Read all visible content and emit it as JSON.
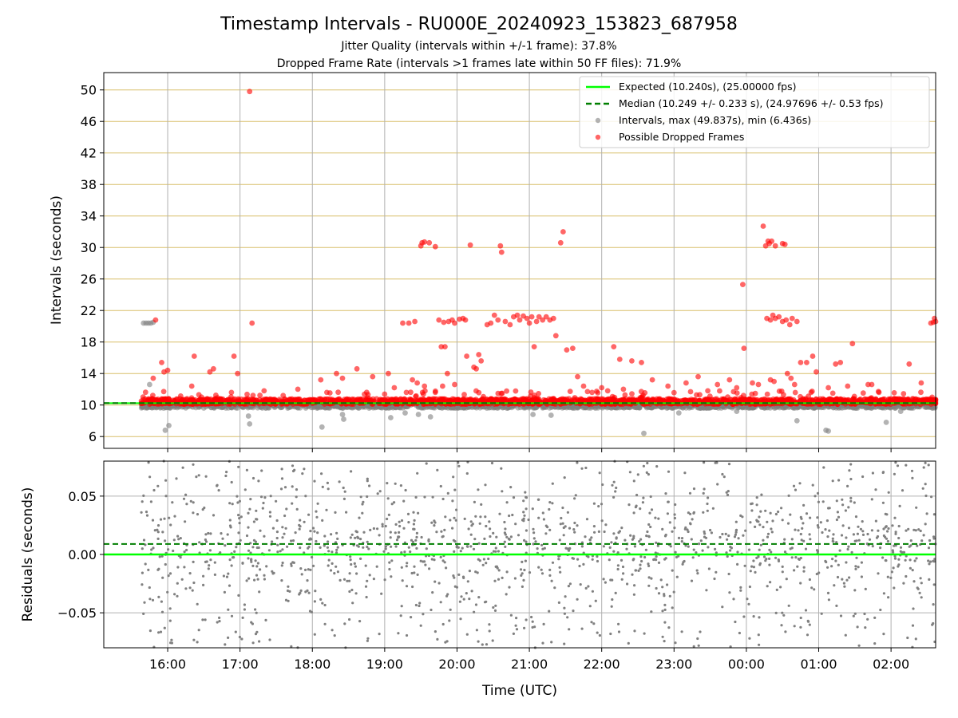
{
  "header": {
    "title": "Timestamp Intervals - RU000E_20240923_153823_687958",
    "subtitle1": "Jitter Quality (intervals within +/-1 frame): 37.8%",
    "subtitle2": "Dropped Frame Rate (intervals >1 frames late within 50 FF files): 71.9%"
  },
  "colors": {
    "expected": "#00ff00",
    "median": "#007f00",
    "intervals": "#808080",
    "dropped": "#ff0000",
    "hgrid_top": "#d8bf6a",
    "grid": "#b0b0b0"
  },
  "chart_data": [
    {
      "type": "scatter",
      "panel": "intervals",
      "ylabel": "Intervals (seconds)",
      "xlabel": "",
      "xlim": [
        "15:07",
        "02:37"
      ],
      "ylim": [
        4.5,
        52.2
      ],
      "yticks": [
        6,
        10,
        14,
        18,
        22,
        26,
        30,
        34,
        38,
        42,
        46,
        50
      ],
      "xticks": [
        "16:00",
        "17:00",
        "18:00",
        "19:00",
        "20:00",
        "21:00",
        "22:00",
        "23:00",
        "00:00",
        "01:00",
        "02:00"
      ],
      "legend_position": "top-right",
      "legend": [
        "Expected (10.240s), (25.00000 fps)",
        "Median (10.249 +/- 0.233 s), (24.97696 +/- 0.53 fps)",
        "Intervals, max (49.837s), min (6.436s)",
        "Possible Dropped Frames"
      ],
      "expected_interval": 10.24,
      "median_interval": 10.249,
      "data_start": "15:38",
      "data_end": "02:37",
      "baseline_band": [
        9.6,
        10.9
      ],
      "dropped_outliers": [
        [
          "15:50",
          20.8
        ],
        [
          "15:48",
          13.4
        ],
        [
          "15:55",
          15.4
        ],
        [
          "15:57",
          14.2
        ],
        [
          "16:00",
          14.4
        ],
        [
          "16:20",
          12.4
        ],
        [
          "16:22",
          16.2
        ],
        [
          "16:35",
          14.2
        ],
        [
          "16:38",
          14.6
        ],
        [
          "16:55",
          16.2
        ],
        [
          "16:58",
          14.0
        ],
        [
          "17:08",
          49.8
        ],
        [
          "17:10",
          20.4
        ],
        [
          "17:20",
          11.8
        ],
        [
          "17:48",
          12.0
        ],
        [
          "18:07",
          13.2
        ],
        [
          "18:12",
          11.6
        ],
        [
          "18:20",
          14.0
        ],
        [
          "18:25",
          13.4
        ],
        [
          "18:37",
          14.6
        ],
        [
          "18:50",
          13.6
        ],
        [
          "19:03",
          14.0
        ],
        [
          "19:08",
          12.2
        ],
        [
          "19:18",
          11.6
        ],
        [
          "19:23",
          13.2
        ],
        [
          "19:27",
          12.8
        ],
        [
          "19:33",
          12.4
        ],
        [
          "19:42",
          11.6
        ],
        [
          "19:48",
          12.4
        ],
        [
          "19:52",
          14.0
        ],
        [
          "19:58",
          12.6
        ],
        [
          "19:15",
          20.4
        ],
        [
          "19:20",
          20.4
        ],
        [
          "19:25",
          20.6
        ],
        [
          "19:30",
          30.2
        ],
        [
          "19:31",
          30.6
        ],
        [
          "19:33",
          30.7
        ],
        [
          "19:37",
          30.6
        ],
        [
          "19:42",
          30.1
        ],
        [
          "19:45",
          20.8
        ],
        [
          "19:47",
          17.4
        ],
        [
          "19:49",
          20.5
        ],
        [
          "19:50",
          17.4
        ],
        [
          "19:53",
          20.6
        ],
        [
          "19:56",
          20.8
        ],
        [
          "19:58",
          20.4
        ],
        [
          "20:02",
          20.9
        ],
        [
          "20:05",
          21.0
        ],
        [
          "20:07",
          20.8
        ],
        [
          "20:08",
          16.2
        ],
        [
          "20:11",
          30.3
        ],
        [
          "20:14",
          14.8
        ],
        [
          "20:16",
          14.6
        ],
        [
          "20:18",
          16.4
        ],
        [
          "20:20",
          15.6
        ],
        [
          "20:25",
          20.2
        ],
        [
          "20:28",
          20.4
        ],
        [
          "20:31",
          21.4
        ],
        [
          "20:34",
          20.8
        ],
        [
          "20:36",
          30.2
        ],
        [
          "20:37",
          29.4
        ],
        [
          "20:40",
          20.6
        ],
        [
          "20:44",
          20.2
        ],
        [
          "20:47",
          21.2
        ],
        [
          "20:50",
          21.4
        ],
        [
          "20:52",
          20.8
        ],
        [
          "20:55",
          21.3
        ],
        [
          "20:58",
          21.0
        ],
        [
          "21:00",
          20.4
        ],
        [
          "21:02",
          21.2
        ],
        [
          "21:04",
          17.4
        ],
        [
          "21:06",
          20.6
        ],
        [
          "21:08",
          21.2
        ],
        [
          "21:11",
          20.8
        ],
        [
          "21:14",
          21.2
        ],
        [
          "21:17",
          20.8
        ],
        [
          "21:20",
          21.0
        ],
        [
          "21:22",
          18.8
        ],
        [
          "21:26",
          30.6
        ],
        [
          "21:28",
          32.0
        ],
        [
          "21:31",
          17.0
        ],
        [
          "21:36",
          17.2
        ],
        [
          "21:40",
          13.6
        ],
        [
          "21:45",
          12.4
        ],
        [
          "21:52",
          11.6
        ],
        [
          "22:00",
          12.2
        ],
        [
          "22:05",
          11.8
        ],
        [
          "22:10",
          17.4
        ],
        [
          "22:15",
          15.8
        ],
        [
          "22:18",
          12.0
        ],
        [
          "22:25",
          15.6
        ],
        [
          "22:33",
          15.4
        ],
        [
          "22:42",
          13.2
        ],
        [
          "22:55",
          12.4
        ],
        [
          "23:10",
          12.8
        ],
        [
          "23:20",
          13.6
        ],
        [
          "23:28",
          11.8
        ],
        [
          "23:36",
          12.6
        ],
        [
          "23:46",
          13.2
        ],
        [
          "23:52",
          12.2
        ],
        [
          "23:57",
          25.3
        ],
        [
          "23:58",
          17.2
        ],
        [
          "00:05",
          12.8
        ],
        [
          "00:10",
          12.6
        ],
        [
          "00:14",
          32.7
        ],
        [
          "00:16",
          30.2
        ],
        [
          "00:18",
          30.8
        ],
        [
          "00:19",
          30.5
        ],
        [
          "00:21",
          30.8
        ],
        [
          "00:24",
          30.2
        ],
        [
          "00:30",
          30.5
        ],
        [
          "00:32",
          30.4
        ],
        [
          "00:17",
          21.0
        ],
        [
          "00:20",
          20.8
        ],
        [
          "00:22",
          21.4
        ],
        [
          "00:24",
          21.0
        ],
        [
          "00:27",
          21.2
        ],
        [
          "00:30",
          20.6
        ],
        [
          "00:33",
          20.8
        ],
        [
          "00:36",
          20.2
        ],
        [
          "00:38",
          21.0
        ],
        [
          "00:42",
          20.6
        ],
        [
          "00:20",
          13.2
        ],
        [
          "00:23",
          13.0
        ],
        [
          "00:34",
          14.0
        ],
        [
          "00:37",
          13.4
        ],
        [
          "00:40",
          12.6
        ],
        [
          "00:45",
          15.4
        ],
        [
          "00:50",
          15.4
        ],
        [
          "00:55",
          16.2
        ],
        [
          "00:58",
          14.2
        ],
        [
          "01:08",
          12.2
        ],
        [
          "01:14",
          15.2
        ],
        [
          "01:18",
          15.4
        ],
        [
          "01:24",
          12.4
        ],
        [
          "01:28",
          17.8
        ],
        [
          "01:41",
          12.6
        ],
        [
          "01:44",
          12.6
        ],
        [
          "01:50",
          11.6
        ],
        [
          "02:15",
          15.2
        ],
        [
          "02:25",
          12.8
        ],
        [
          "02:33",
          20.4
        ],
        [
          "02:35",
          20.5
        ],
        [
          "02:37",
          20.6
        ],
        [
          "02:36",
          21.0
        ]
      ],
      "gray_outliers": [
        [
          "15:40",
          20.4
        ],
        [
          "15:42",
          20.4
        ],
        [
          "15:44",
          20.4
        ],
        [
          "15:46",
          20.4
        ],
        [
          "15:48",
          20.5
        ],
        [
          "15:45",
          12.6
        ],
        [
          "15:58",
          6.8
        ],
        [
          "16:01",
          7.4
        ],
        [
          "17:08",
          7.6
        ],
        [
          "17:07",
          8.6
        ],
        [
          "18:08",
          7.2
        ],
        [
          "18:25",
          8.8
        ],
        [
          "18:26",
          8.2
        ],
        [
          "19:05",
          8.4
        ],
        [
          "19:17",
          9.0
        ],
        [
          "19:28",
          8.8
        ],
        [
          "19:38",
          8.5
        ],
        [
          "21:03",
          8.8
        ],
        [
          "21:18",
          8.7
        ],
        [
          "22:35",
          6.4
        ],
        [
          "23:04",
          9.0
        ],
        [
          "23:52",
          9.2
        ],
        [
          "00:42",
          8.0
        ],
        [
          "01:06",
          6.8
        ],
        [
          "01:08",
          6.7
        ],
        [
          "01:56",
          7.8
        ],
        [
          "02:08",
          9.2
        ]
      ]
    },
    {
      "type": "scatter",
      "panel": "residuals",
      "ylabel": "Residuals (seconds)",
      "xlabel": "Time (UTC)",
      "xlim": [
        "15:07",
        "02:37"
      ],
      "ylim": [
        -0.08,
        0.08
      ],
      "yticks": [
        -0.05,
        0.0,
        0.05
      ],
      "ytick_labels": [
        "−0.05",
        "0.00",
        "0.05"
      ],
      "xticks": [
        "16:00",
        "17:00",
        "18:00",
        "19:00",
        "20:00",
        "21:00",
        "22:00",
        "23:00",
        "00:00",
        "01:00",
        "02:00"
      ],
      "expected_residual": 0.0,
      "median_residual": 0.009,
      "point_count": 1500,
      "residual_spread": [
        -0.08,
        0.08
      ]
    }
  ]
}
